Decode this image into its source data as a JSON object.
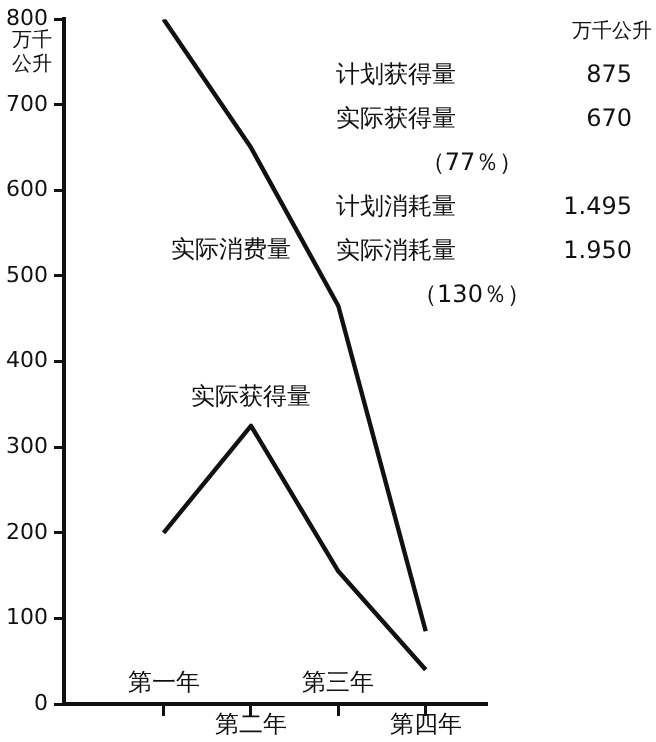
{
  "chart_data": {
    "type": "line",
    "ylabel": "万千公升",
    "categories": [
      "第一年",
      "第二年",
      "第三年",
      "第四年"
    ],
    "series": [
      {
        "name": "实际消费量",
        "color": "#111111",
        "values": [
          800,
          650,
          465,
          85
        ]
      },
      {
        "name": "实际获得量",
        "color": "#111111",
        "values": [
          200,
          325,
          155,
          40
        ]
      }
    ],
    "ylim": [
      0,
      800
    ],
    "yticks": [
      0,
      100,
      200,
      300,
      400,
      500,
      600,
      700,
      800
    ],
    "grid": false,
    "legend": false,
    "marker": "none",
    "line_style": "solid",
    "annotations": [
      "万千公升",
      "计划获得量 875",
      "实际获得量 670",
      "（77％）",
      "计划消耗量 1.495",
      "实际消耗量 1.950",
      "（130％）"
    ]
  }
}
